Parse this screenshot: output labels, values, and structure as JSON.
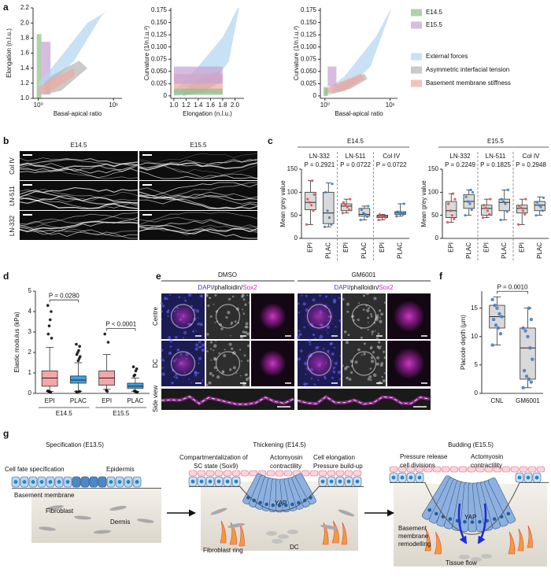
{
  "panel_labels": [
    "a",
    "b",
    "c",
    "d",
    "e",
    "f",
    "g"
  ],
  "chart_data": [
    {
      "type": "region",
      "xlabel": "Basal-apical ratio",
      "ylabel": "Elongation (n.l.u.)",
      "xlog": true,
      "xlim": [
        0.85,
        13
      ],
      "xticks": [
        {
          "value": 1,
          "label": "10⁰"
        },
        {
          "value": 10,
          "label": "10¹"
        }
      ],
      "ylim": [
        1.0,
        2.2
      ],
      "yticks": [
        {
          "value": 1.0,
          "label": "1.0"
        },
        1.2,
        1.4,
        1.6,
        1.8,
        {
          "value": 2.0,
          "label": "2.0"
        },
        2.2
      ],
      "series": [
        {
          "name": "E14.5",
          "color": "#8fc08a",
          "x": [
            0.95,
            1.1,
            1.1,
            0.95
          ],
          "y": [
            1.0,
            1.0,
            1.85,
            1.85
          ]
        },
        {
          "name": "E15.5",
          "color": "#c6a3d4",
          "x": [
            1.1,
            1.45,
            1.45,
            1.1
          ],
          "y": [
            1.05,
            1.05,
            1.75,
            1.75
          ]
        },
        {
          "name": "External forces",
          "color": "#b3d5f0",
          "x": [
            1.0,
            1.2,
            3,
            7,
            8,
            4.5,
            1.5,
            1.0
          ],
          "y": [
            1.1,
            1.1,
            1.5,
            2.1,
            2.15,
            2.0,
            1.4,
            1.2
          ]
        },
        {
          "name": "Asymmetric interfacial tension",
          "color": "#b5b5b5",
          "x": [
            1.2,
            2,
            4.5,
            3.5,
            1.5,
            1.2
          ],
          "y": [
            1.05,
            1.1,
            1.4,
            1.5,
            1.3,
            1.2
          ]
        },
        {
          "name": "Basement membrane stiffness",
          "color": "#f0a9a0",
          "x": [
            1.0,
            1.5,
            3,
            3,
            1.5,
            1.0
          ],
          "y": [
            1.05,
            1.1,
            1.3,
            1.4,
            1.25,
            1.15
          ]
        }
      ]
    },
    {
      "type": "region",
      "xlabel": "Elongation (n.l.u.)",
      "ylabel": "Curvature (1/n.l.u.²)",
      "xlog": false,
      "xlim": [
        0.95,
        2.15
      ],
      "xticks": [
        {
          "value": 1.0,
          "label": "1.0"
        },
        1.2,
        1.4,
        1.6,
        1.8,
        {
          "value": 2.0,
          "label": "2.0"
        }
      ],
      "ylim": [
        -0.005,
        0.18
      ],
      "yticks": [
        0,
        0.025,
        {
          "value": 0.05,
          "label": "0.050"
        },
        0.075,
        {
          "value": 0.1,
          "label": "0.100"
        },
        0.125,
        {
          "value": 0.15,
          "label": "0.150"
        },
        0.175
      ],
      "series": [
        {
          "color": "#b3d5f0",
          "x": [
            1.0,
            1.5,
            1.9,
            2.07,
            2.05,
            1.8,
            1.4,
            1.0
          ],
          "y": [
            0,
            0.005,
            0.07,
            0.18,
            0.18,
            0.12,
            0.06,
            0.01
          ]
        },
        {
          "color": "#b5b5b5",
          "x": [
            1.15,
            1.5,
            1.8,
            1.75,
            1.4,
            1.15
          ],
          "y": [
            0,
            0.01,
            0.03,
            0.05,
            0.035,
            0.01
          ]
        },
        {
          "color": "#f0a9a0",
          "x": [
            1.0,
            1.8,
            1.8,
            1.0
          ],
          "y": [
            0.005,
            0.005,
            0.045,
            0.045
          ]
        },
        {
          "color": "#c6a3d4",
          "x": [
            1.0,
            1.8,
            1.8,
            1.0
          ],
          "y": [
            0.025,
            0.025,
            0.06,
            0.06
          ]
        },
        {
          "color": "#8fc08a",
          "x": [
            1.0,
            1.8,
            1.8,
            1.0
          ],
          "y": [
            0.002,
            0.002,
            0.015,
            0.015
          ]
        }
      ]
    },
    {
      "type": "region",
      "xlabel": "Basal-apical ratio",
      "ylabel": "Curvature (1/n.l.u.²)",
      "xlog": true,
      "xlim": [
        0.85,
        13
      ],
      "xticks": [
        {
          "value": 1,
          "label": "10⁰"
        },
        {
          "value": 10,
          "label": "10¹"
        }
      ],
      "ylim": [
        -0.005,
        0.18
      ],
      "yticks": [
        0,
        0.025,
        {
          "value": 0.05,
          "label": "0.050"
        },
        0.075,
        {
          "value": 0.1,
          "label": "0.100"
        },
        0.125,
        {
          "value": 0.15,
          "label": "0.150"
        },
        0.175
      ],
      "series": [
        {
          "color": "#b3d5f0",
          "x": [
            1.0,
            2,
            5,
            10,
            10.5,
            6,
            2,
            1.0
          ],
          "y": [
            0,
            0.01,
            0.06,
            0.17,
            0.18,
            0.12,
            0.04,
            0.01
          ]
        },
        {
          "color": "#b5b5b5",
          "x": [
            1.3,
            2.5,
            4.5,
            4,
            2,
            1.3
          ],
          "y": [
            0.005,
            0.015,
            0.035,
            0.045,
            0.03,
            0.015
          ]
        },
        {
          "color": "#f0a9a0",
          "x": [
            1.0,
            2,
            4,
            3.5,
            1.5,
            1.0
          ],
          "y": [
            0.005,
            0.01,
            0.035,
            0.045,
            0.025,
            0.015
          ]
        },
        {
          "color": "#8fc08a",
          "x": [
            0.95,
            1.1,
            1.1,
            0.95
          ],
          "y": [
            0,
            0,
            0.018,
            0.018
          ]
        },
        {
          "color": "#c6a3d4",
          "x": [
            1.1,
            1.5,
            1.5,
            1.1
          ],
          "y": [
            0.02,
            0.02,
            0.06,
            0.06
          ]
        }
      ]
    },
    {
      "type": "box",
      "title": "E14.5",
      "ylabel": "Mean grey value",
      "ylim": [
        0,
        150
      ],
      "yticks": [
        0,
        50,
        100,
        150
      ],
      "box_color": "#d9d9d9",
      "point_colors": [
        "#d9534f",
        "#3b7ec4"
      ],
      "groups": [
        {
          "name": "LN-332",
          "p_value": "P = 0.2921",
          "categories": [
            "EPI",
            "PLAC"
          ],
          "boxes": [
            {
              "min": 30,
              "q1": 62,
              "median": 78,
              "q3": 100,
              "max": 125,
              "points": [
                30,
                60,
                72,
                78,
                85,
                95,
                125
              ]
            },
            {
              "min": 25,
              "q1": 32,
              "median": 55,
              "q3": 100,
              "max": 120,
              "points": [
                25,
                30,
                45,
                60,
                100,
                118
              ]
            }
          ]
        },
        {
          "name": "LN-511",
          "p_value": "P = 0.0722",
          "categories": [
            "EPI",
            "PLAC"
          ],
          "boxes": [
            {
              "min": 55,
              "q1": 60,
              "median": 70,
              "q3": 75,
              "max": 85,
              "points": [
                55,
                62,
                68,
                72,
                78,
                85
              ]
            },
            {
              "min": 40,
              "q1": 48,
              "median": 52,
              "q3": 65,
              "max": 70,
              "points": [
                40,
                47,
                52,
                55,
                62,
                70
              ]
            }
          ]
        },
        {
          "name": "Col IV",
          "p_value": "P = 0.0722",
          "categories": [
            "EPI",
            "PLAC"
          ],
          "boxes": [
            {
              "min": 40,
              "q1": 45,
              "median": 48,
              "q3": 50,
              "max": 52,
              "points": [
                40,
                45,
                47,
                49,
                52
              ]
            },
            {
              "min": 48,
              "q1": 52,
              "median": 55,
              "q3": 58,
              "max": 75,
              "points": [
                48,
                52,
                54,
                56,
                58,
                75
              ]
            }
          ]
        }
      ]
    },
    {
      "type": "box",
      "title": "E15.5",
      "ylabel": "Mean grey value",
      "ylim": [
        0,
        150
      ],
      "yticks": [
        0,
        50,
        100,
        150
      ],
      "box_color": "#d9d9d9",
      "point_colors": [
        "#d9534f",
        "#3b7ec4"
      ],
      "groups": [
        {
          "name": "LN-332",
          "p_value": "P = 0.2249",
          "categories": [
            "EPI",
            "PLAC"
          ],
          "boxes": [
            {
              "min": 35,
              "q1": 45,
              "median": 60,
              "q3": 80,
              "max": 97,
              "points": [
                35,
                42,
                50,
                60,
                75,
                85,
                97
              ]
            },
            {
              "min": 50,
              "q1": 65,
              "median": 80,
              "q3": 95,
              "max": 105,
              "points": [
                50,
                62,
                75,
                80,
                90,
                100,
                105
              ]
            }
          ]
        },
        {
          "name": "LN-511",
          "p_value": "P = 0.1825",
          "categories": [
            "EPI",
            "PLAC"
          ],
          "boxes": [
            {
              "min": 45,
              "q1": 50,
              "median": 65,
              "q3": 72,
              "max": 85,
              "points": [
                45,
                52,
                60,
                66,
                72,
                85
              ]
            },
            {
              "min": 40,
              "q1": 60,
              "median": 78,
              "q3": 85,
              "max": 105,
              "points": [
                40,
                58,
                75,
                80,
                85,
                105
              ]
            }
          ]
        },
        {
          "name": "Col IV",
          "p_value": "P = 0.2948",
          "categories": [
            "EPI",
            "PLAC"
          ],
          "boxes": [
            {
              "min": 30,
              "q1": 55,
              "median": 65,
              "q3": 72,
              "max": 85,
              "points": [
                30,
                52,
                60,
                66,
                70,
                85
              ]
            },
            {
              "min": 50,
              "q1": 60,
              "median": 72,
              "q3": 80,
              "max": 90,
              "points": [
                50,
                60,
                68,
                72,
                78,
                88
              ]
            }
          ]
        }
      ]
    },
    {
      "type": "box",
      "ylabel": "Elastic modulus (kPa)",
      "ylim": [
        0,
        5
      ],
      "yticks": [
        0,
        1,
        2,
        3,
        4,
        5
      ],
      "box_colors": [
        "#f4a6a8",
        "#3ba3e6"
      ],
      "point_color": "#111111",
      "groups": [
        {
          "name": "E14.5",
          "p_value": "P = 0.0280",
          "categories": [
            "EPI",
            "PLAC"
          ],
          "boxes": [
            {
              "min": 0.1,
              "q1": 0.35,
              "median": 0.75,
              "q3": 1.1,
              "max": 2.25,
              "points": [
                4.3,
                4.0,
                3.6,
                3.3,
                2.9,
                2.7,
                0.05,
                0.08,
                0.1,
                0.12
              ]
            },
            {
              "min": 0.1,
              "q1": 0.5,
              "median": 0.65,
              "q3": 0.85,
              "max": 1.5,
              "points": [
                2.4,
                2.3,
                2.1,
                2.0,
                1.9,
                1.8,
                1.7,
                1.6,
                0.05,
                0.08,
                0.1
              ]
            }
          ]
        },
        {
          "name": "E15.5",
          "p_value": "P < 0.0001",
          "categories": [
            "EPI",
            "PLAC"
          ],
          "boxes": [
            {
              "min": 0.2,
              "q1": 0.4,
              "median": 0.75,
              "q3": 1.1,
              "max": 1.9,
              "points": [
                2.9,
                2.5,
                0.1,
                0.15
              ]
            },
            {
              "min": 0.1,
              "q1": 0.25,
              "median": 0.35,
              "q3": 0.5,
              "max": 0.75,
              "points": [
                1.3,
                1.2,
                1.1,
                0.9,
                0.85,
                0.05,
                0.08,
                0.1,
                0.12
              ]
            }
          ]
        }
      ]
    },
    {
      "type": "box",
      "ylabel": "Placode depth (µm)",
      "ylim": [
        0,
        18
      ],
      "yticks": [
        0,
        5,
        10,
        15
      ],
      "box_color": "#d9d9d9",
      "point_color": "#4a7ebb",
      "groups": [
        {
          "p_value": "P = 0.0010",
          "categories": [
            "CNL",
            "GM6001"
          ],
          "boxes": [
            {
              "min": 8.5,
              "q1": 11.5,
              "median": 13.5,
              "q3": 15.5,
              "max": 17,
              "points": [
                8.5,
                10.5,
                11.5,
                12,
                13,
                13.5,
                14,
                15,
                15.5,
                16.5
              ]
            },
            {
              "min": 1,
              "q1": 2.5,
              "median": 8,
              "q3": 11.5,
              "max": 15,
              "points": [
                1,
                2,
                2.5,
                3,
                4,
                6,
                8,
                10,
                11,
                11.5,
                13,
                15
              ]
            }
          ]
        }
      ]
    }
  ],
  "panel_b": {
    "columns": [
      "E14.5",
      "E15.5"
    ],
    "rows": [
      "Col IV",
      "LN-511",
      "LN-332"
    ]
  },
  "panel_e": {
    "columns": [
      "DMSO",
      "GM6001"
    ],
    "stain": [
      "DAPI",
      "/phalloidin/",
      "Sox2"
    ],
    "rows": [
      "Centre",
      "DC",
      "Side view"
    ]
  },
  "panel_g": {
    "stages": [
      "Specification (E13.5)",
      "Thickening (E14.5)",
      "Budding (E15.5)"
    ],
    "stage1": [
      "Cell fate specification",
      "Epidermis",
      "Basement membrane",
      "Fibroblast",
      "Dermis"
    ],
    "stage2": [
      "Compartmentalization of",
      "SC state (Sox9)",
      "Actomyosin",
      "contractility",
      "Cell elongation",
      "Pressure build-up",
      "YAP",
      "Fibroblast ring",
      "DC"
    ],
    "stage3": [
      "Pressure release",
      "cell divisions",
      "Actomyosin",
      "contractility",
      "YAP",
      "Basement",
      "membrane",
      "remodelling",
      "Tissue flow"
    ]
  }
}
